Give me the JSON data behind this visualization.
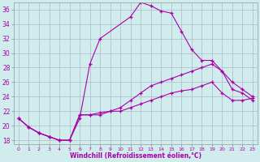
{
  "xlabel": "Windchill (Refroidissement éolien,°C)",
  "bg_color": "#d0ecec",
  "line_color": "#aa00aa",
  "grid_color": "#b0b8cc",
  "xlim": [
    -0.5,
    23.5
  ],
  "ylim": [
    17.5,
    37.0
  ],
  "yticks": [
    18,
    20,
    22,
    24,
    26,
    28,
    30,
    32,
    34,
    36
  ],
  "xticks": [
    0,
    1,
    2,
    3,
    4,
    5,
    6,
    7,
    8,
    9,
    10,
    11,
    12,
    13,
    14,
    15,
    16,
    17,
    18,
    19,
    20,
    21,
    22,
    23
  ],
  "line1_x": [
    0,
    1,
    2,
    3,
    4,
    5,
    6,
    7,
    8,
    11,
    12,
    13,
    14,
    15,
    16,
    17,
    18,
    19,
    20,
    21,
    22,
    23
  ],
  "line1_y": [
    21.0,
    19.8,
    19.0,
    18.5,
    18.0,
    18.0,
    21.0,
    28.5,
    32.0,
    35.0,
    37.0,
    36.5,
    35.8,
    35.5,
    33.0,
    30.5,
    29.0,
    29.0,
    27.5,
    25.0,
    24.5,
    23.5
  ],
  "line2_x": [
    0,
    1,
    2,
    3,
    4,
    5,
    6,
    7,
    8,
    9,
    10,
    11,
    12,
    13,
    14,
    15,
    16,
    17,
    18,
    19,
    20,
    21,
    22,
    23
  ],
  "line2_y": [
    21.0,
    19.8,
    19.0,
    18.5,
    18.0,
    18.0,
    21.5,
    21.5,
    21.8,
    22.0,
    22.5,
    23.5,
    24.5,
    25.5,
    26.0,
    26.5,
    27.0,
    27.5,
    28.0,
    28.5,
    27.5,
    26.0,
    25.0,
    24.0
  ],
  "line3_x": [
    0,
    1,
    2,
    3,
    4,
    5,
    6,
    7,
    8,
    9,
    10,
    11,
    12,
    13,
    14,
    15,
    16,
    17,
    18,
    19,
    20,
    21,
    22,
    23
  ],
  "line3_y": [
    21.0,
    19.8,
    19.0,
    18.5,
    18.0,
    18.0,
    21.5,
    21.5,
    21.5,
    22.0,
    22.0,
    22.5,
    23.0,
    23.5,
    24.0,
    24.5,
    24.8,
    25.0,
    25.5,
    26.0,
    24.5,
    23.5,
    23.5,
    23.8
  ]
}
